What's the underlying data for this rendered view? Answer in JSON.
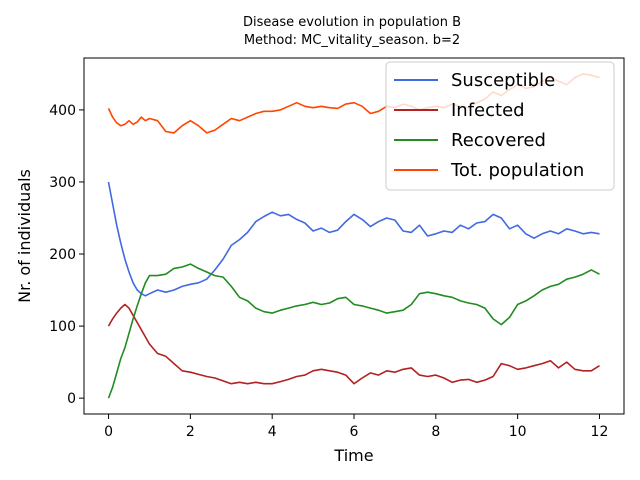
{
  "chart_data": {
    "type": "line",
    "title_lines": [
      "Disease evolution in population B",
      "Method: MC_vitality_season. b=2"
    ],
    "xlabel": "Time",
    "ylabel": "Nr. of individuals",
    "xlim": [
      -0.6,
      12.6
    ],
    "ylim": [
      -22,
      472
    ],
    "xticks": [
      0,
      2,
      4,
      6,
      8,
      10,
      12
    ],
    "yticks": [
      0,
      100,
      200,
      300,
      400
    ],
    "grid": false,
    "legend_position": "top-right",
    "series": [
      {
        "name": "Susceptible",
        "color": "#4169e1",
        "x": [
          0,
          0.1,
          0.2,
          0.3,
          0.4,
          0.5,
          0.6,
          0.7,
          0.8,
          0.9,
          1.0,
          1.2,
          1.4,
          1.6,
          1.8,
          2.0,
          2.2,
          2.4,
          2.6,
          2.8,
          3.0,
          3.2,
          3.4,
          3.6,
          3.8,
          4.0,
          4.2,
          4.4,
          4.6,
          4.8,
          5.0,
          5.2,
          5.4,
          5.6,
          5.8,
          6.0,
          6.2,
          6.4,
          6.6,
          6.8,
          7.0,
          7.2,
          7.4,
          7.6,
          7.8,
          8.0,
          8.2,
          8.4,
          8.6,
          8.8,
          9.0,
          9.2,
          9.4,
          9.6,
          9.8,
          10.0,
          10.2,
          10.4,
          10.6,
          10.8,
          11.0,
          11.2,
          11.4,
          11.6,
          11.8,
          12.0
        ],
        "values": [
          300,
          270,
          240,
          215,
          193,
          175,
          160,
          150,
          145,
          142,
          145,
          150,
          147,
          150,
          155,
          158,
          160,
          165,
          178,
          193,
          212,
          220,
          230,
          245,
          252,
          258,
          253,
          255,
          248,
          243,
          232,
          236,
          230,
          233,
          245,
          255,
          248,
          238,
          245,
          250,
          247,
          232,
          230,
          240,
          225,
          228,
          232,
          230,
          240,
          235,
          243,
          245,
          255,
          250,
          235,
          240,
          228,
          222,
          228,
          232,
          228,
          235,
          232,
          228,
          230,
          228
        ]
      },
      {
        "name": "Infected",
        "color": "#b22222",
        "x": [
          0,
          0.1,
          0.2,
          0.3,
          0.4,
          0.5,
          0.6,
          0.7,
          0.8,
          0.9,
          1.0,
          1.2,
          1.4,
          1.6,
          1.8,
          2.0,
          2.2,
          2.4,
          2.6,
          2.8,
          3.0,
          3.2,
          3.4,
          3.6,
          3.8,
          4.0,
          4.2,
          4.4,
          4.6,
          4.8,
          5.0,
          5.2,
          5.4,
          5.6,
          5.8,
          6.0,
          6.2,
          6.4,
          6.6,
          6.8,
          7.0,
          7.2,
          7.4,
          7.6,
          7.8,
          8.0,
          8.2,
          8.4,
          8.6,
          8.8,
          9.0,
          9.2,
          9.4,
          9.6,
          9.8,
          10.0,
          10.2,
          10.4,
          10.6,
          10.8,
          11.0,
          11.2,
          11.4,
          11.6,
          11.8,
          12.0
        ],
        "values": [
          100,
          110,
          118,
          125,
          130,
          125,
          115,
          105,
          95,
          85,
          75,
          62,
          58,
          48,
          38,
          36,
          33,
          30,
          28,
          24,
          20,
          22,
          20,
          22,
          20,
          20,
          23,
          26,
          30,
          32,
          38,
          40,
          38,
          36,
          32,
          20,
          28,
          35,
          32,
          38,
          36,
          40,
          42,
          32,
          30,
          32,
          28,
          22,
          25,
          26,
          22,
          25,
          30,
          48,
          45,
          40,
          42,
          45,
          48,
          52,
          42,
          50,
          40,
          38,
          38,
          45
        ]
      },
      {
        "name": "Recovered",
        "color": "#228b22",
        "x": [
          0,
          0.1,
          0.2,
          0.3,
          0.4,
          0.5,
          0.6,
          0.7,
          0.8,
          0.9,
          1.0,
          1.2,
          1.4,
          1.6,
          1.8,
          2.0,
          2.2,
          2.4,
          2.6,
          2.8,
          3.0,
          3.2,
          3.4,
          3.6,
          3.8,
          4.0,
          4.2,
          4.4,
          4.6,
          4.8,
          5.0,
          5.2,
          5.4,
          5.6,
          5.8,
          6.0,
          6.2,
          6.4,
          6.6,
          6.8,
          7.0,
          7.2,
          7.4,
          7.6,
          7.8,
          8.0,
          8.2,
          8.4,
          8.6,
          8.8,
          9.0,
          9.2,
          9.4,
          9.6,
          9.8,
          10.0,
          10.2,
          10.4,
          10.6,
          10.8,
          11.0,
          11.2,
          11.4,
          11.6,
          11.8,
          12.0
        ],
        "values": [
          0,
          15,
          35,
          55,
          70,
          90,
          110,
          128,
          145,
          160,
          170,
          170,
          172,
          180,
          182,
          186,
          180,
          175,
          170,
          168,
          155,
          140,
          135,
          125,
          120,
          118,
          122,
          125,
          128,
          130,
          133,
          130,
          132,
          138,
          140,
          130,
          128,
          125,
          122,
          118,
          120,
          122,
          130,
          145,
          147,
          145,
          142,
          140,
          135,
          132,
          130,
          125,
          110,
          102,
          112,
          130,
          135,
          142,
          150,
          155,
          158,
          165,
          168,
          172,
          178,
          172
        ]
      },
      {
        "name": "Tot. population",
        "color": "#ff4500",
        "x": [
          0,
          0.1,
          0.2,
          0.3,
          0.4,
          0.5,
          0.6,
          0.7,
          0.8,
          0.9,
          1.0,
          1.2,
          1.4,
          1.6,
          1.8,
          2.0,
          2.2,
          2.4,
          2.6,
          2.8,
          3.0,
          3.2,
          3.4,
          3.6,
          3.8,
          4.0,
          4.2,
          4.4,
          4.6,
          4.8,
          5.0,
          5.2,
          5.4,
          5.6,
          5.8,
          6.0,
          6.2,
          6.4,
          6.6,
          6.8,
          7.0,
          7.2,
          7.4,
          7.6,
          7.8,
          8.0,
          8.2,
          8.4,
          8.6,
          8.8,
          9.0,
          9.2,
          9.4,
          9.6,
          9.8,
          10.0,
          10.2,
          10.4,
          10.6,
          10.8,
          11.0,
          11.2,
          11.4,
          11.6,
          11.8,
          12.0
        ],
        "values": [
          402,
          390,
          382,
          378,
          380,
          385,
          380,
          383,
          390,
          385,
          388,
          385,
          370,
          368,
          378,
          385,
          378,
          368,
          372,
          380,
          388,
          385,
          390,
          395,
          398,
          398,
          400,
          405,
          410,
          405,
          403,
          405,
          403,
          402,
          408,
          410,
          405,
          395,
          398,
          405,
          403,
          408,
          405,
          400,
          403,
          405,
          403,
          408,
          405,
          403,
          410,
          415,
          425,
          420,
          428,
          435,
          430,
          432,
          440,
          445,
          440,
          435,
          445,
          450,
          448,
          445
        ]
      }
    ]
  }
}
